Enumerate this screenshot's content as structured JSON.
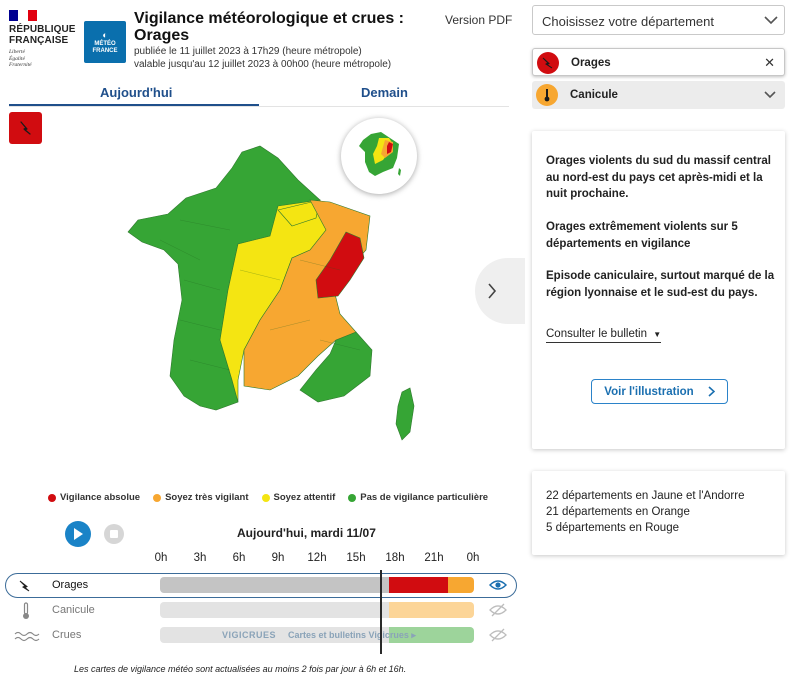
{
  "header": {
    "republic_lines": [
      "RÉPUBLIQUE",
      "FRANÇAISE"
    ],
    "motto": [
      "Liberté",
      "Égalité",
      "Fraternité"
    ],
    "meteo_logo": [
      "MÉTÉO",
      "FRANCE"
    ],
    "title_line1": "Vigilance météorologique et crues :",
    "title_line2": "Orages",
    "published": "publiée le 11 juillet 2023 à 17h29 (heure métropole)",
    "valid_until": "valable jusqu'au 12 juillet 2023 à 00h00 (heure métropole)",
    "pdf_link": "Version PDF"
  },
  "tabs": [
    {
      "label": "Aujourd'hui",
      "active": true
    },
    {
      "label": "Demain",
      "active": false
    }
  ],
  "legend": [
    {
      "label": "Vigilance absolue",
      "color": "#d10c10"
    },
    {
      "label": "Soyez très vigilant",
      "color": "#f7a731"
    },
    {
      "label": "Soyez attentif",
      "color": "#f4e512"
    },
    {
      "label": "Pas de vigilance particulière",
      "color": "#36a535"
    }
  ],
  "timeline": {
    "date_label": "Aujourd'hui, mardi 11/07",
    "hours": [
      "0h",
      "3h",
      "6h",
      "9h",
      "12h",
      "15h",
      "18h",
      "21h",
      "0h"
    ],
    "rows": [
      {
        "label": "Orages",
        "icon": "lightning-icon",
        "selected": true,
        "segments": [
          {
            "hours": 17.5,
            "color": "#c4c4c4"
          },
          {
            "hours": 4.5,
            "color": "#d10c10"
          },
          {
            "hours": 2,
            "color": "#f7a731"
          }
        ]
      },
      {
        "label": "Canicule",
        "icon": "thermometer-icon",
        "selected": false,
        "segments": [
          {
            "hours": 17.5,
            "color": "#e3e3e3"
          },
          {
            "hours": 6.5,
            "color": "#fcd598"
          }
        ]
      },
      {
        "label": "Crues",
        "icon": "waves-icon",
        "selected": false,
        "segments": [
          {
            "hours": 17.5,
            "color": "#e3e3e3"
          },
          {
            "hours": 6.5,
            "color": "#9dd49b"
          }
        ]
      }
    ],
    "vigicrues_logo": "VIGICRUES",
    "vigicrues_link": "Cartes et bulletins Vigicrues ▸"
  },
  "footnote": "Les cartes de vigilance météo sont actualisées au moins 2 fois par jour à 6h et 16h.",
  "sidebar": {
    "department_placeholder": "Choisissez votre département",
    "active_filter": "Orages",
    "canicule_filter": "Canicule",
    "paragraphs": [
      "Orages violents du sud du massif central au nord-est du pays cet après-midi et la nuit prochaine.",
      "Orages extrêmement violents sur 5 départements en vigilance",
      "Episode caniculaire, surtout marqué de la région lyonnaise et le sud-est du pays."
    ],
    "bulletin_link": "Consulter le bulletin",
    "illustration_button": "Voir l'illustration",
    "counts": [
      "22 départements en Jaune et l'Andorre",
      "21 départements en Orange",
      "5 départements en Rouge"
    ]
  },
  "colors": {
    "red": "#d10c10",
    "orange": "#f7a731",
    "yellow": "#f4e512",
    "green": "#36a535",
    "accent": "#1f4f8b"
  }
}
